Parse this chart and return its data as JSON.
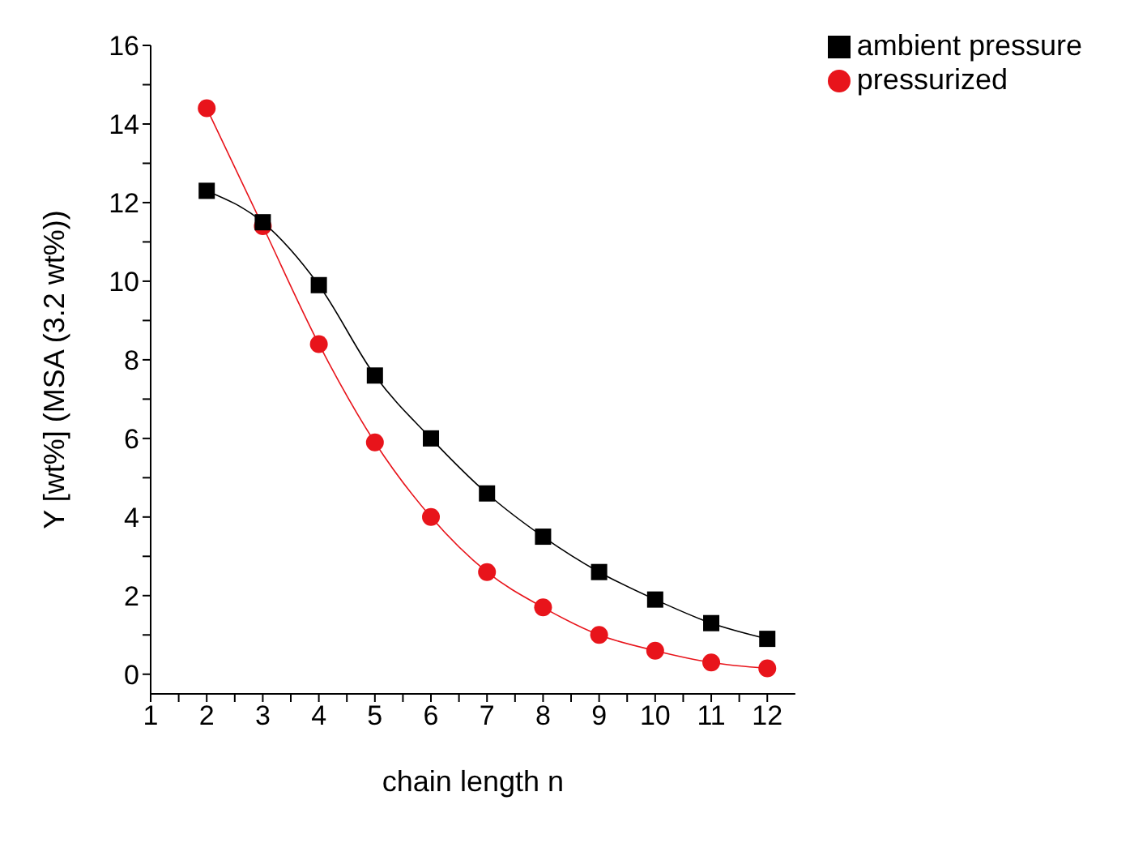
{
  "chart_data": {
    "type": "line",
    "xlabel": "chain length n",
    "ylabel": "Y [wt%] (MSA (3.2 wt%))",
    "x": [
      2,
      3,
      4,
      5,
      6,
      7,
      8,
      9,
      10,
      11,
      12
    ],
    "series": [
      {
        "name": "ambient pressure",
        "color": "#000000",
        "marker": "square",
        "values": [
          12.3,
          11.5,
          9.9,
          7.6,
          6.0,
          4.6,
          3.5,
          2.6,
          1.9,
          1.3,
          0.9
        ]
      },
      {
        "name": "pressurized",
        "color": "#e8141b",
        "marker": "circle",
        "values": [
          14.4,
          11.4,
          8.4,
          5.9,
          4.0,
          2.6,
          1.7,
          1.0,
          0.6,
          0.3,
          0.15
        ]
      }
    ],
    "xlim": [
      1,
      12.5
    ],
    "xticks": [
      1,
      {
        "value": 1.5,
        "label": null
      },
      2,
      {
        "value": 2.5,
        "label": null
      },
      3,
      {
        "value": 3.5,
        "label": null
      },
      4,
      {
        "value": 4.5,
        "label": null
      },
      5,
      {
        "value": 5.5,
        "label": null
      },
      6,
      {
        "value": 6.5,
        "label": null
      },
      7,
      {
        "value": 7.5,
        "label": null
      },
      8,
      {
        "value": 8.5,
        "label": null
      },
      9,
      {
        "value": 9.5,
        "label": null
      },
      10,
      {
        "value": 10.5,
        "label": null
      },
      11,
      {
        "value": 11.5,
        "label": null
      },
      12
    ],
    "ylim": [
      -0.5,
      16
    ],
    "yticks": [
      0,
      {
        "value": 1,
        "label": null
      },
      2,
      {
        "value": 3,
        "label": null
      },
      4,
      {
        "value": 5,
        "label": null
      },
      6,
      {
        "value": 7,
        "label": null
      },
      8,
      {
        "value": 9,
        "label": null
      },
      10,
      {
        "value": 11,
        "label": null
      },
      12,
      {
        "value": 13,
        "label": null
      },
      14,
      {
        "value": 15,
        "label": null
      },
      16
    ],
    "legend": "top right",
    "grid": false,
    "line_style": "solid"
  }
}
